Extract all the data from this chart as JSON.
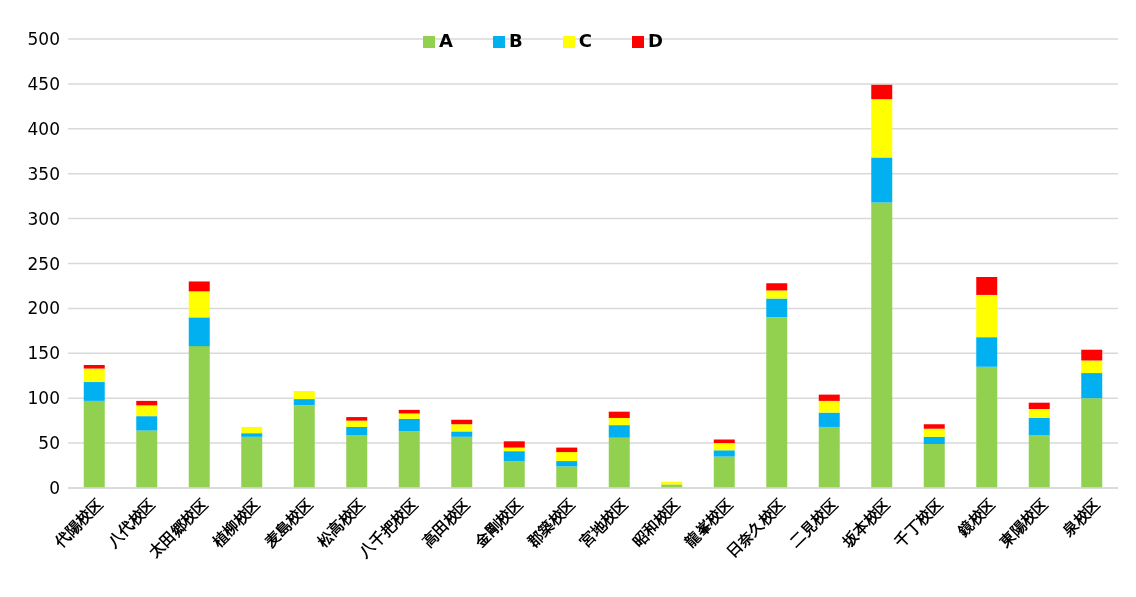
{
  "chart_data": {
    "type": "bar",
    "stacked": true,
    "categories": [
      "代陽校区",
      "八代校区",
      "太田郷校区",
      "植柳校区",
      "麦島校区",
      "松高校区",
      "八千把校区",
      "高田校区",
      "金剛校区",
      "郡築校区",
      "宮地校区",
      "昭和校区",
      "龍峯校区",
      "日奈久校区",
      "二見校区",
      "坂本校区",
      "千丁校区",
      "鏡校区",
      "東陽校区",
      "泉校区"
    ],
    "series": [
      {
        "name": "A",
        "color": "#92d050",
        "values": [
          97,
          64,
          158,
          57,
          92,
          59,
          63,
          57,
          30,
          24,
          56,
          4,
          35,
          190,
          68,
          318,
          49,
          135,
          59,
          100
        ]
      },
      {
        "name": "B",
        "color": "#00b0f0",
        "values": [
          21,
          16,
          32,
          4,
          7,
          9,
          14,
          6,
          11,
          6,
          14,
          0,
          7,
          21,
          16,
          50,
          8,
          33,
          19,
          28
        ]
      },
      {
        "name": "C",
        "color": "#ffff00",
        "values": [
          15,
          12,
          29,
          7,
          9,
          7,
          6,
          8,
          4,
          10,
          8,
          3,
          8,
          9,
          13,
          65,
          9,
          47,
          10,
          14
        ]
      },
      {
        "name": "D",
        "color": "#ff0000",
        "values": [
          4,
          5,
          11,
          0,
          0,
          4,
          4,
          5,
          7,
          5,
          7,
          0,
          4,
          8,
          7,
          16,
          5,
          20,
          7,
          12
        ]
      }
    ],
    "ylim": [
      0,
      500
    ],
    "yticks": [
      0,
      50,
      100,
      150,
      200,
      250,
      300,
      350,
      400,
      450,
      500
    ],
    "grid": "y",
    "legend": "top"
  }
}
